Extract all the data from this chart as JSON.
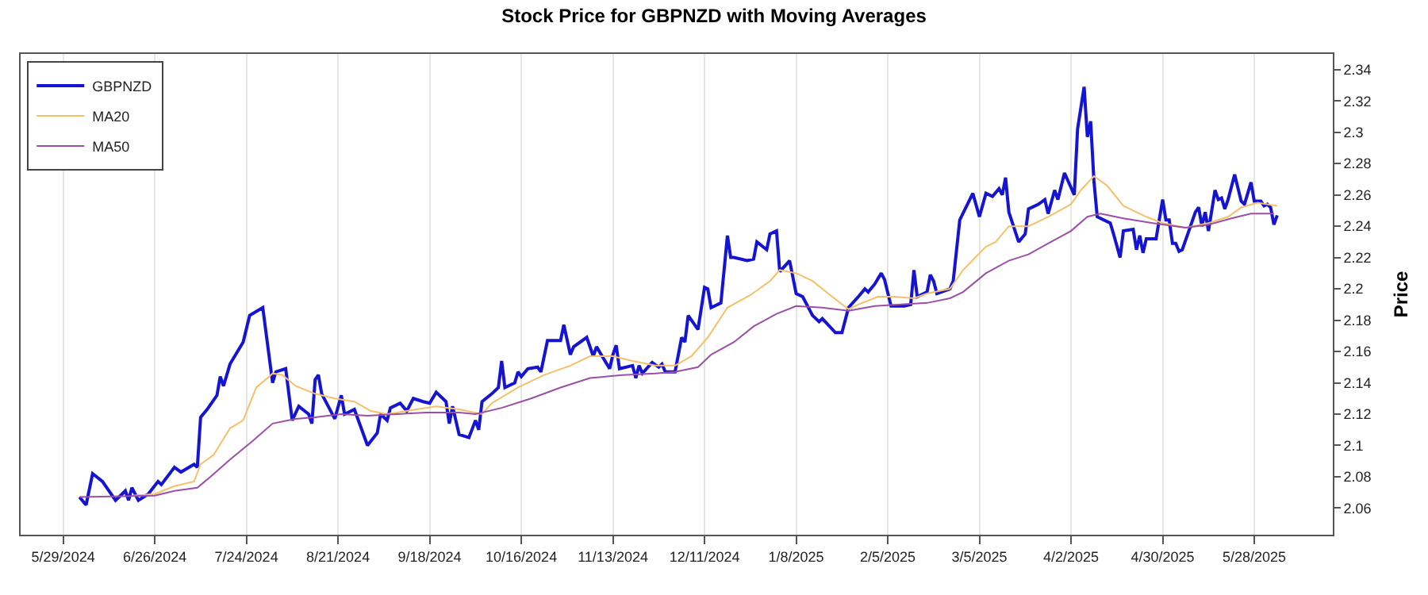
{
  "chart_data": {
    "type": "line",
    "title": "Stock Price for GBPNZD with Moving Averages",
    "ylabel": "Price",
    "xlim": [
      "2024-05-16",
      "2025-06-21"
    ],
    "ylim": [
      2.043,
      2.35
    ],
    "xticks": [
      {
        "value": "2024-05-29",
        "label": "5/29/2024"
      },
      {
        "value": "2024-06-26",
        "label": "6/26/2024"
      },
      {
        "value": "2024-07-24",
        "label": "7/24/2024"
      },
      {
        "value": "2024-08-21",
        "label": "8/21/2024"
      },
      {
        "value": "2024-09-18",
        "label": "9/18/2024"
      },
      {
        "value": "2024-10-16",
        "label": "10/16/2024"
      },
      {
        "value": "2024-11-13",
        "label": "11/13/2024"
      },
      {
        "value": "2024-12-11",
        "label": "12/11/2024"
      },
      {
        "value": "2025-01-08",
        "label": "1/8/2025"
      },
      {
        "value": "2025-02-05",
        "label": "2/5/2025"
      },
      {
        "value": "2025-03-05",
        "label": "3/5/2025"
      },
      {
        "value": "2025-04-02",
        "label": "4/2/2025"
      },
      {
        "value": "2025-04-30",
        "label": "4/30/2025"
      },
      {
        "value": "2025-05-28",
        "label": "5/28/2025"
      }
    ],
    "yticks": [
      2.06,
      2.08,
      2.1,
      2.12,
      2.14,
      2.16,
      2.18,
      2.2,
      2.22,
      2.24,
      2.26,
      2.28,
      2.3,
      2.32,
      2.34
    ],
    "grid": "x",
    "legend": "top left",
    "marker": "none",
    "line_style": "solid",
    "series": [
      {
        "name": "GBPNZD",
        "color": "#1414d2",
        "x": [
          "2024-06-03",
          "2024-06-05",
          "2024-06-07",
          "2024-06-10",
          "2024-06-14",
          "2024-06-17",
          "2024-06-18",
          "2024-06-19",
          "2024-06-21",
          "2024-06-24",
          "2024-06-27",
          "2024-06-28",
          "2024-07-02",
          "2024-07-04",
          "2024-07-08",
          "2024-07-09",
          "2024-07-10",
          "2024-07-12",
          "2024-07-15",
          "2024-07-16",
          "2024-07-17",
          "2024-07-19",
          "2024-07-23",
          "2024-07-25",
          "2024-07-29",
          "2024-08-01",
          "2024-08-02",
          "2024-08-05",
          "2024-08-07",
          "2024-08-09",
          "2024-08-12",
          "2024-08-13",
          "2024-08-14",
          "2024-08-15",
          "2024-08-16",
          "2024-08-20",
          "2024-08-22",
          "2024-08-23",
          "2024-08-26",
          "2024-08-30",
          "2024-09-02",
          "2024-09-03",
          "2024-09-05",
          "2024-09-06",
          "2024-09-09",
          "2024-09-11",
          "2024-09-13",
          "2024-09-16",
          "2024-09-18",
          "2024-09-20",
          "2024-09-23",
          "2024-09-24",
          "2024-09-25",
          "2024-09-27",
          "2024-09-30",
          "2024-10-02",
          "2024-10-03",
          "2024-10-04",
          "2024-10-07",
          "2024-10-09",
          "2024-10-10",
          "2024-10-11",
          "2024-10-14",
          "2024-10-15",
          "2024-10-16",
          "2024-10-18",
          "2024-10-21",
          "2024-10-22",
          "2024-10-24",
          "2024-10-28",
          "2024-10-29",
          "2024-10-31",
          "2024-11-01",
          "2024-11-05",
          "2024-11-07",
          "2024-11-08",
          "2024-11-12",
          "2024-11-13",
          "2024-11-14",
          "2024-11-15",
          "2024-11-19",
          "2024-11-20",
          "2024-11-21",
          "2024-11-22",
          "2024-11-25",
          "2024-11-27",
          "2024-11-28",
          "2024-11-29",
          "2024-12-02",
          "2024-12-04",
          "2024-12-05",
          "2024-12-06",
          "2024-12-09",
          "2024-12-11",
          "2024-12-12",
          "2024-12-13",
          "2024-12-16",
          "2024-12-18",
          "2024-12-19",
          "2024-12-20",
          "2024-12-24",
          "2024-12-26",
          "2024-12-27",
          "2024-12-30",
          "2024-12-31",
          "2025-01-02",
          "2025-01-03",
          "2025-01-06",
          "2025-01-08",
          "2025-01-10",
          "2025-01-13",
          "2025-01-15",
          "2025-01-16",
          "2025-01-20",
          "2025-01-22",
          "2025-01-24",
          "2025-01-27",
          "2025-01-29",
          "2025-01-30",
          "2025-02-01",
          "2025-02-03",
          "2025-02-04",
          "2025-02-06",
          "2025-02-10",
          "2025-02-12",
          "2025-02-13",
          "2025-02-14",
          "2025-02-17",
          "2025-02-18",
          "2025-02-19",
          "2025-02-20",
          "2025-02-24",
          "2025-02-25",
          "2025-02-27",
          "2025-03-03",
          "2025-03-05",
          "2025-03-07",
          "2025-03-09",
          "2025-03-11",
          "2025-03-12",
          "2025-03-13",
          "2025-03-14",
          "2025-03-17",
          "2025-03-19",
          "2025-03-20",
          "2025-03-23",
          "2025-03-25",
          "2025-03-26",
          "2025-03-28",
          "2025-03-29",
          "2025-03-31",
          "2025-04-03",
          "2025-04-04",
          "2025-04-06",
          "2025-04-07",
          "2025-04-08",
          "2025-04-09",
          "2025-04-10",
          "2025-04-14",
          "2025-04-15",
          "2025-04-17",
          "2025-04-18",
          "2025-04-21",
          "2025-04-22",
          "2025-04-23",
          "2025-04-24",
          "2025-04-25",
          "2025-04-28",
          "2025-04-30",
          "2025-05-01",
          "2025-05-02",
          "2025-05-03",
          "2025-05-04",
          "2025-05-05",
          "2025-05-06",
          "2025-05-08",
          "2025-05-10",
          "2025-05-11",
          "2025-05-12",
          "2025-05-13",
          "2025-05-14",
          "2025-05-16",
          "2025-05-17",
          "2025-05-18",
          "2025-05-19",
          "2025-05-20",
          "2025-05-22",
          "2025-05-24",
          "2025-05-25",
          "2025-05-27",
          "2025-05-28",
          "2025-05-30",
          "2025-05-31",
          "2025-06-01",
          "2025-06-02",
          "2025-06-03",
          "2025-06-04"
        ],
        "values": [
          2.067,
          2.062,
          2.082,
          2.077,
          2.065,
          2.071,
          2.065,
          2.073,
          2.065,
          2.069,
          2.077,
          2.075,
          2.086,
          2.083,
          2.088,
          2.086,
          2.118,
          2.123,
          2.132,
          2.144,
          2.138,
          2.152,
          2.166,
          2.183,
          2.188,
          2.14,
          2.147,
          2.149,
          2.116,
          2.125,
          2.12,
          2.114,
          2.142,
          2.145,
          2.133,
          2.117,
          2.132,
          2.12,
          2.123,
          2.1,
          2.108,
          2.12,
          2.116,
          2.124,
          2.127,
          2.122,
          2.13,
          2.128,
          2.127,
          2.134,
          2.128,
          2.114,
          2.125,
          2.107,
          2.105,
          2.116,
          2.11,
          2.128,
          2.133,
          2.137,
          2.154,
          2.137,
          2.14,
          2.147,
          2.144,
          2.149,
          2.15,
          2.147,
          2.167,
          2.167,
          2.177,
          2.158,
          2.163,
          2.169,
          2.157,
          2.163,
          2.149,
          2.158,
          2.164,
          2.149,
          2.151,
          2.143,
          2.151,
          2.146,
          2.153,
          2.15,
          2.152,
          2.147,
          2.147,
          2.169,
          2.166,
          2.183,
          2.174,
          2.201,
          2.2,
          2.188,
          2.191,
          2.234,
          2.22,
          2.22,
          2.218,
          2.219,
          2.23,
          2.225,
          2.235,
          2.237,
          2.211,
          2.218,
          2.197,
          2.195,
          2.183,
          2.179,
          2.181,
          2.172,
          2.172,
          2.188,
          2.195,
          2.2,
          2.198,
          2.203,
          2.21,
          2.206,
          2.189,
          2.189,
          2.19,
          2.212,
          2.195,
          2.198,
          2.209,
          2.205,
          2.197,
          2.2,
          2.205,
          2.244,
          2.261,
          2.246,
          2.261,
          2.259,
          2.264,
          2.26,
          2.271,
          2.249,
          2.23,
          2.235,
          2.251,
          2.254,
          2.257,
          2.248,
          2.263,
          2.257,
          2.274,
          2.26,
          2.302,
          2.329,
          2.297,
          2.307,
          2.269,
          2.246,
          2.242,
          2.235,
          2.22,
          2.237,
          2.238,
          2.225,
          2.234,
          2.223,
          2.232,
          2.232,
          2.257,
          2.244,
          2.244,
          2.229,
          2.229,
          2.224,
          2.225,
          2.237,
          2.249,
          2.252,
          2.24,
          2.249,
          2.237,
          2.263,
          2.257,
          2.258,
          2.251,
          2.257,
          2.273,
          2.256,
          2.254,
          2.268,
          2.256,
          2.256,
          2.253,
          2.254,
          2.252,
          2.241,
          2.247
        ]
      },
      {
        "name": "MA20",
        "color": "#f4c06a",
        "x": [
          "2024-06-19",
          "2024-06-26",
          "2024-07-02",
          "2024-07-08",
          "2024-07-10",
          "2024-07-14",
          "2024-07-19",
          "2024-07-23",
          "2024-07-27",
          "2024-07-31",
          "2024-08-01",
          "2024-08-04",
          "2024-08-08",
          "2024-08-14",
          "2024-08-20",
          "2024-08-26",
          "2024-08-31",
          "2024-09-05",
          "2024-09-14",
          "2024-09-20",
          "2024-09-27",
          "2024-10-04",
          "2024-10-07",
          "2024-10-15",
          "2024-10-23",
          "2024-10-31",
          "2024-11-06",
          "2024-11-13",
          "2024-11-19",
          "2024-11-26",
          "2024-12-02",
          "2024-12-07",
          "2024-12-12",
          "2024-12-18",
          "2024-12-25",
          "2024-12-31",
          "2025-01-03",
          "2025-01-08",
          "2025-01-13",
          "2025-01-19",
          "2025-01-24",
          "2025-01-27",
          "2025-02-02",
          "2025-02-07",
          "2025-02-13",
          "2025-02-17",
          "2025-02-24",
          "2025-02-28",
          "2025-03-07",
          "2025-03-10",
          "2025-03-14",
          "2025-03-20",
          "2025-03-26",
          "2025-04-02",
          "2025-04-05",
          "2025-04-09",
          "2025-04-13",
          "2025-04-18",
          "2025-04-25",
          "2025-04-30",
          "2025-05-07",
          "2025-05-14",
          "2025-05-20",
          "2025-05-24",
          "2025-05-29",
          "2025-06-04"
        ],
        "values": [
          2.068,
          2.069,
          2.074,
          2.077,
          2.088,
          2.094,
          2.111,
          2.116,
          2.137,
          2.144,
          2.146,
          2.145,
          2.138,
          2.133,
          2.13,
          2.128,
          2.122,
          2.12,
          2.123,
          2.125,
          2.123,
          2.12,
          2.127,
          2.137,
          2.145,
          2.151,
          2.157,
          2.157,
          2.154,
          2.151,
          2.151,
          2.157,
          2.169,
          2.188,
          2.196,
          2.205,
          2.212,
          2.21,
          2.205,
          2.195,
          2.187,
          2.19,
          2.195,
          2.195,
          2.194,
          2.197,
          2.2,
          2.212,
          2.227,
          2.23,
          2.24,
          2.24,
          2.246,
          2.254,
          2.263,
          2.272,
          2.266,
          2.253,
          2.246,
          2.242,
          2.239,
          2.242,
          2.246,
          2.252,
          2.255,
          2.253
        ]
      },
      {
        "name": "MA50",
        "color": "#9c4fa8",
        "x": [
          "2024-06-03",
          "2024-06-26",
          "2024-07-02",
          "2024-07-09",
          "2024-07-13",
          "2024-07-19",
          "2024-07-26",
          "2024-08-01",
          "2024-08-08",
          "2024-08-14",
          "2024-08-22",
          "2024-08-30",
          "2024-09-08",
          "2024-09-17",
          "2024-09-27",
          "2024-10-02",
          "2024-10-10",
          "2024-10-19",
          "2024-10-28",
          "2024-11-06",
          "2024-11-16",
          "2024-11-26",
          "2024-12-02",
          "2024-12-09",
          "2024-12-13",
          "2024-12-20",
          "2024-12-26",
          "2025-01-02",
          "2025-01-08",
          "2025-01-16",
          "2025-01-24",
          "2025-02-01",
          "2025-02-09",
          "2025-02-17",
          "2025-02-24",
          "2025-02-28",
          "2025-03-07",
          "2025-03-14",
          "2025-03-20",
          "2025-03-26",
          "2025-04-02",
          "2025-04-07",
          "2025-04-11",
          "2025-04-18",
          "2025-04-27",
          "2025-05-07",
          "2025-05-14",
          "2025-05-21",
          "2025-05-27",
          "2025-06-03"
        ],
        "values": [
          2.067,
          2.068,
          2.071,
          2.073,
          2.08,
          2.091,
          2.103,
          2.114,
          2.117,
          2.118,
          2.12,
          2.119,
          2.12,
          2.121,
          2.121,
          2.12,
          2.124,
          2.13,
          2.137,
          2.143,
          2.145,
          2.146,
          2.147,
          2.15,
          2.158,
          2.166,
          2.176,
          2.184,
          2.189,
          2.188,
          2.186,
          2.189,
          2.19,
          2.191,
          2.194,
          2.198,
          2.21,
          2.218,
          2.222,
          2.229,
          2.237,
          2.246,
          2.248,
          2.245,
          2.242,
          2.239,
          2.241,
          2.245,
          2.248,
          2.248
        ]
      }
    ]
  }
}
